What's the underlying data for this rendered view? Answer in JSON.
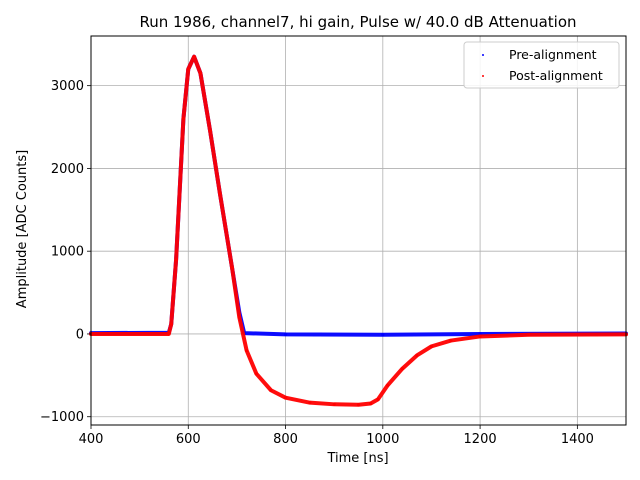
{
  "chart_data": {
    "type": "scatter",
    "title": "Run 1986, channel7, hi gain, Pulse w/ 40.0 dB Attenuation",
    "xlabel": "Time [ns]",
    "ylabel": "Amplitude [ADC Counts]",
    "xlim": [
      400,
      1500
    ],
    "ylim": [
      -1100,
      3600
    ],
    "x_ticks": [
      400,
      600,
      800,
      1000,
      1200,
      1400
    ],
    "y_ticks": [
      -1000,
      0,
      1000,
      2000,
      3000
    ],
    "x_tick_labels": [
      "400",
      "600",
      "800",
      "1000",
      "1200",
      "1400"
    ],
    "y_tick_labels": [
      "−1000",
      "0",
      "1000",
      "2000",
      "3000"
    ],
    "grid": true,
    "legend_position": "top-right",
    "series": [
      {
        "name": "Pre-alignment",
        "color": "#0000ff",
        "marker": "dot",
        "points": [
          [
            400,
            10
          ],
          [
            560,
            15
          ],
          [
            565,
            120
          ],
          [
            575,
            900
          ],
          [
            590,
            2600
          ],
          [
            600,
            3200
          ],
          [
            612,
            3350
          ],
          [
            625,
            3150
          ],
          [
            645,
            2450
          ],
          [
            665,
            1700
          ],
          [
            690,
            800
          ],
          [
            705,
            260
          ],
          [
            715,
            10
          ],
          [
            800,
            -5
          ],
          [
            1000,
            -10
          ],
          [
            1200,
            0
          ],
          [
            1500,
            5
          ]
        ]
      },
      {
        "name": "Post-alignment",
        "color": "#ff0000",
        "marker": "dot",
        "points": [
          [
            400,
            0
          ],
          [
            560,
            0
          ],
          [
            565,
            120
          ],
          [
            575,
            900
          ],
          [
            590,
            2600
          ],
          [
            600,
            3200
          ],
          [
            612,
            3350
          ],
          [
            625,
            3150
          ],
          [
            645,
            2450
          ],
          [
            665,
            1700
          ],
          [
            690,
            800
          ],
          [
            705,
            200
          ],
          [
            720,
            -200
          ],
          [
            740,
            -480
          ],
          [
            770,
            -680
          ],
          [
            800,
            -770
          ],
          [
            850,
            -830
          ],
          [
            900,
            -850
          ],
          [
            950,
            -855
          ],
          [
            975,
            -840
          ],
          [
            990,
            -790
          ],
          [
            1010,
            -620
          ],
          [
            1040,
            -420
          ],
          [
            1070,
            -260
          ],
          [
            1100,
            -150
          ],
          [
            1140,
            -80
          ],
          [
            1200,
            -30
          ],
          [
            1300,
            -10
          ],
          [
            1500,
            -5
          ]
        ]
      }
    ]
  }
}
